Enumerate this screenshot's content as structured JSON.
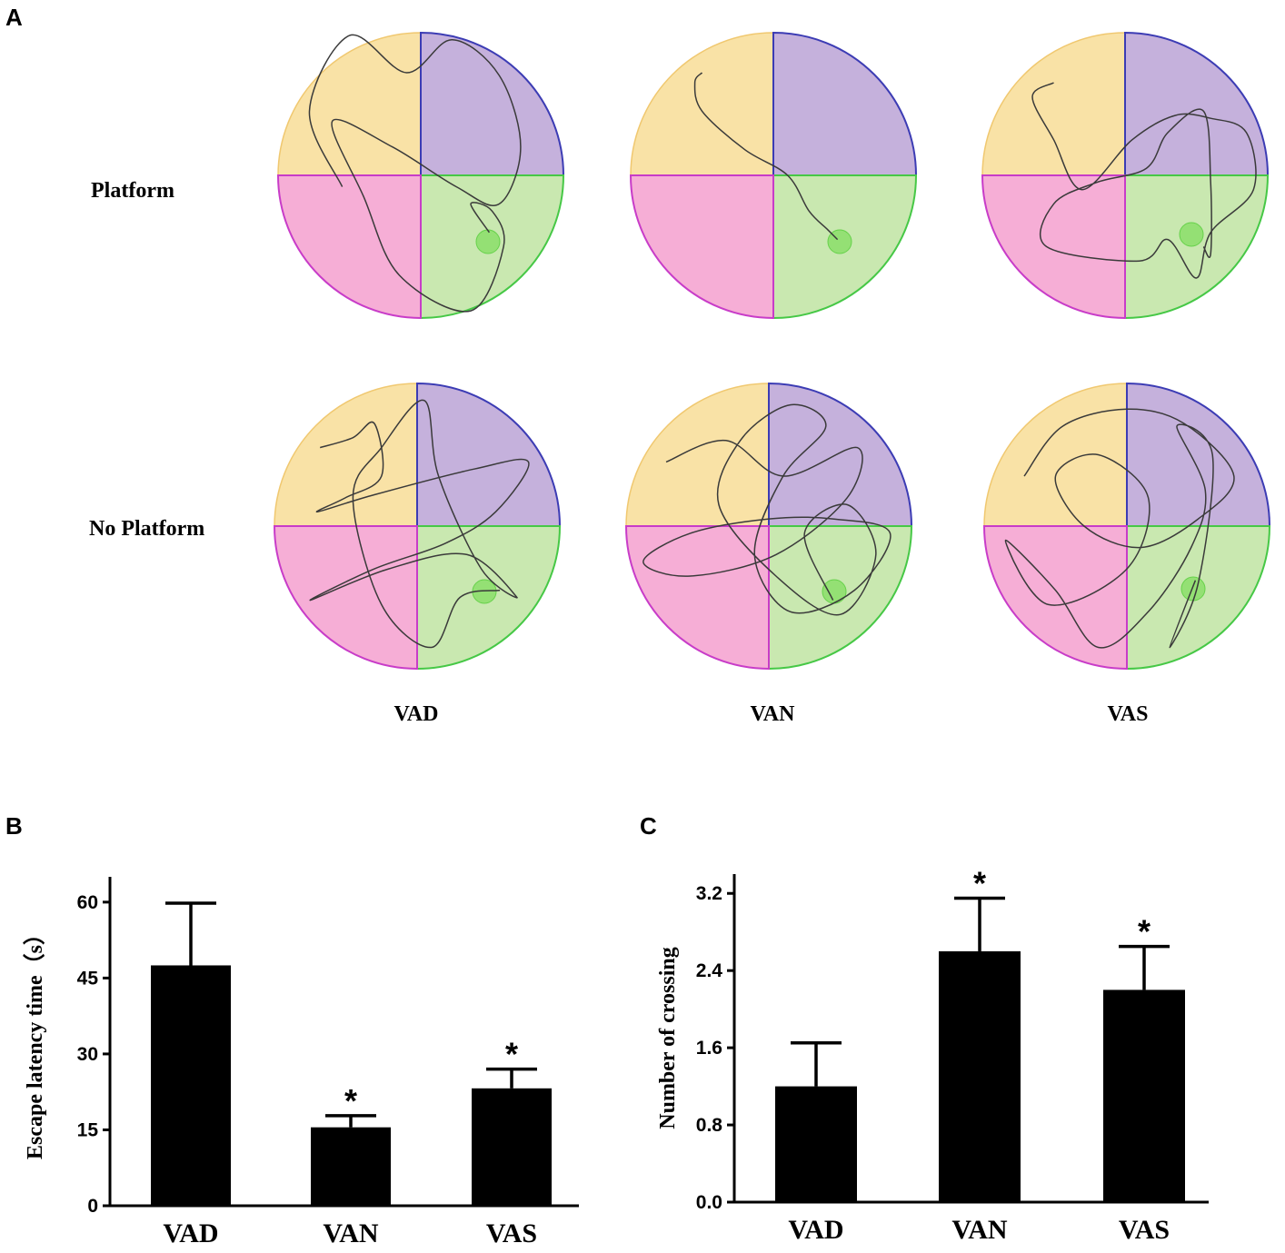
{
  "panels": {
    "a": "A",
    "b": "B",
    "c": "C"
  },
  "row_labels": [
    "Platform",
    "No Platform"
  ],
  "column_labels": [
    "VAD",
    "VAN",
    "VAS"
  ],
  "quadrant_colors": {
    "top_left": "#f9e2a6",
    "top_right": "#c5b1dc",
    "bottom_left": "#f6aed6",
    "bottom_right": "#c9e8b0",
    "platform": "#8fe06e",
    "purple_edge": "#3c3cb4",
    "magenta_edge": "#c83cc8",
    "green_edge": "#46c846"
  },
  "chart_data": [
    {
      "type": "bar",
      "panel": "B",
      "categories": [
        "VAD",
        "VAN",
        "VAS"
      ],
      "values": [
        47.5,
        15.5,
        23.2
      ],
      "errors": [
        12.3,
        2.3,
        3.8
      ],
      "significance": [
        "",
        "*",
        "*"
      ],
      "ylabel": "Escape latency time（s）",
      "xlabel": "",
      "ylim": [
        0,
        65
      ],
      "yticks": [
        "0",
        "15",
        "30",
        "45",
        "60"
      ],
      "bar_color": "#000000"
    },
    {
      "type": "bar",
      "panel": "C",
      "categories": [
        "VAD",
        "VAN",
        "VAS"
      ],
      "values": [
        1.2,
        2.6,
        2.2
      ],
      "errors": [
        0.45,
        0.55,
        0.45
      ],
      "significance": [
        "",
        "*",
        "*"
      ],
      "ylabel": "Number of crossing",
      "xlabel": "",
      "ylim": [
        0,
        3.4
      ],
      "yticks": [
        "0.0",
        "0.8",
        "1.6",
        "2.4",
        "3.2"
      ],
      "bar_color": "#000000"
    }
  ]
}
